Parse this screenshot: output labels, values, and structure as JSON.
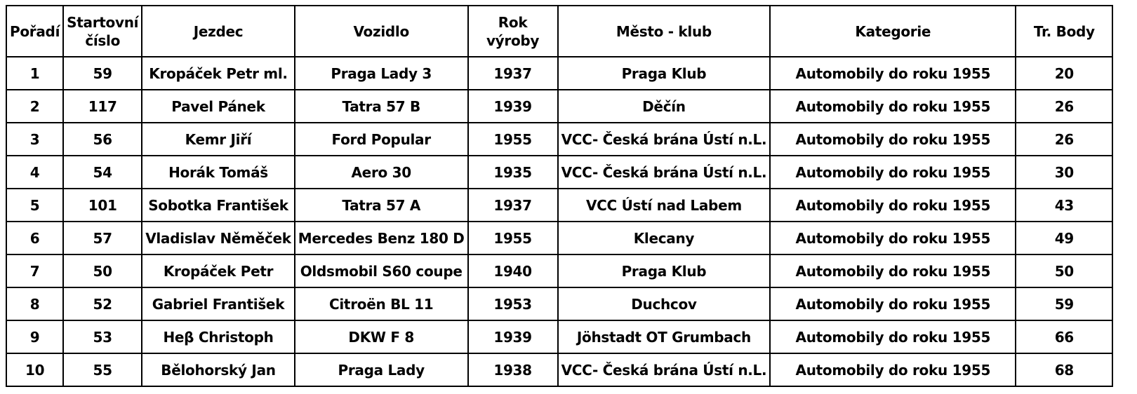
{
  "table": {
    "headers": {
      "rank": "Pořadí",
      "start_number_line1": "Startovní",
      "start_number_line2": "číslo",
      "driver": "Jezdec",
      "vehicle": "Vozidlo",
      "year": "Rok výroby",
      "club": "Město - klub",
      "category": "Kategorie",
      "points": "Tr. Body"
    },
    "rows": [
      {
        "rank": "1",
        "start": "59",
        "driver": "Kropáček Petr ml.",
        "vehicle": "Praga Lady 3",
        "year": "1937",
        "club": "Praga Klub",
        "category": "Automobily do roku 1955",
        "points": "20"
      },
      {
        "rank": "2",
        "start": "117",
        "driver": "Pavel Pánek",
        "vehicle": "Tatra 57 B",
        "year": "1939",
        "club": "Děčín",
        "category": "Automobily do roku 1955",
        "points": "26"
      },
      {
        "rank": "3",
        "start": "56",
        "driver": "Kemr Jiří",
        "vehicle": "Ford Popular",
        "year": "1955",
        "club": "VCC- Česká brána Ústí n.L.",
        "category": "Automobily do roku 1955",
        "points": "26"
      },
      {
        "rank": "4",
        "start": "54",
        "driver": "Horák Tomáš",
        "vehicle": "Aero 30",
        "year": "1935",
        "club": "VCC- Česká brána Ústí n.L.",
        "category": "Automobily do roku 1955",
        "points": "30"
      },
      {
        "rank": "5",
        "start": "101",
        "driver": "Sobotka František",
        "vehicle": "Tatra 57 A",
        "year": "1937",
        "club": "VCC Ústí nad Labem",
        "category": "Automobily do roku 1955",
        "points": "43"
      },
      {
        "rank": "6",
        "start": "57",
        "driver": "Vladislav Něměček",
        "vehicle": "Mercedes Benz 180 D",
        "year": "1955",
        "club": "Klecany",
        "category": "Automobily do roku 1955",
        "points": "49"
      },
      {
        "rank": "7",
        "start": "50",
        "driver": "Kropáček Petr",
        "vehicle": "Oldsmobil S60 coupe",
        "year": "1940",
        "club": "Praga Klub",
        "category": "Automobily do roku 1955",
        "points": "50"
      },
      {
        "rank": "8",
        "start": "52",
        "driver": "Gabriel František",
        "vehicle": "Citroën BL 11",
        "year": "1953",
        "club": "Duchcov",
        "category": "Automobily do roku 1955",
        "points": "59"
      },
      {
        "rank": "9",
        "start": "53",
        "driver": "Heβ Christoph",
        "vehicle": "DKW F 8",
        "year": "1939",
        "club": "Jöhstadt OT Grumbach",
        "category": "Automobily do roku 1955",
        "points": "66"
      },
      {
        "rank": "10",
        "start": "55",
        "driver": "Bělohorský Jan",
        "vehicle": "Praga  Lady",
        "year": "1938",
        "club": "VCC- Česká brána Ústí n.L.",
        "category": "Automobily do roku 1955",
        "points": "68"
      }
    ]
  }
}
